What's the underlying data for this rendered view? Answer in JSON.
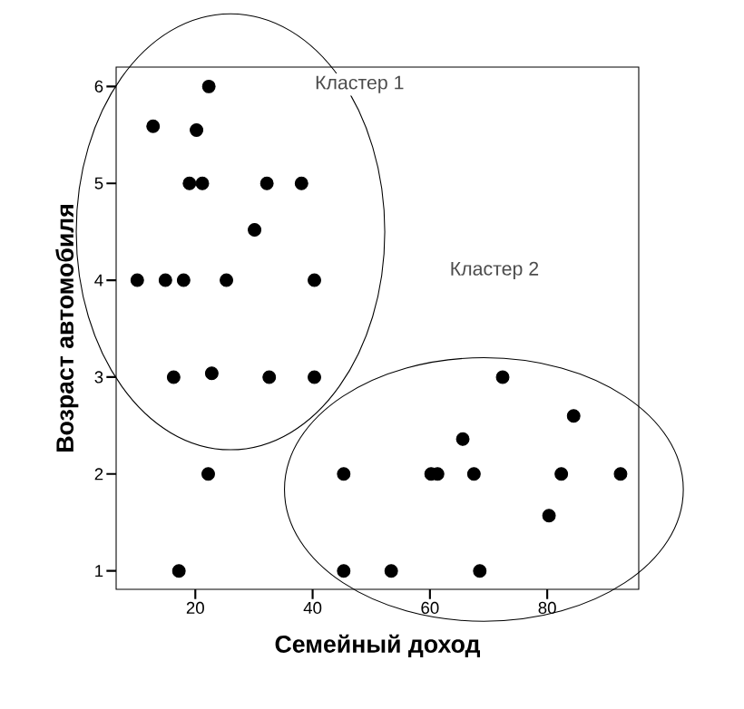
{
  "chart_data": {
    "type": "scatter",
    "xlabel": "Семейный доход",
    "ylabel": "Возраст автомобиля",
    "x": [
      22.3,
      12.8,
      20.2,
      19.0,
      21.2,
      32.2,
      38.1,
      30.1,
      10.1,
      14.9,
      18.0,
      25.3,
      40.3,
      16.3,
      22.8,
      32.6,
      40.3,
      72.4,
      84.5,
      65.6,
      22.2,
      45.3,
      60.2,
      61.3,
      67.5,
      82.4,
      92.5,
      80.3,
      17.2,
      45.3,
      53.4,
      68.5
    ],
    "values": [
      6,
      5.59,
      5.55,
      5,
      5,
      5,
      5,
      4.52,
      4,
      4,
      4,
      4,
      4,
      3,
      3.04,
      3,
      3,
      3,
      2.6,
      2.36,
      2,
      2,
      2,
      2,
      2,
      2,
      2,
      1.57,
      1,
      1,
      1,
      1
    ],
    "color": "#000000",
    "marker": "circle",
    "grid": false,
    "xlim": [
      6.5,
      95.6
    ],
    "ylim": [
      0.81,
      6.2
    ],
    "xticks": [
      20,
      40,
      60,
      80
    ],
    "yticks": [
      1,
      2,
      3,
      4,
      5,
      6
    ],
    "annotations": [
      "Кластер  1",
      "Кластер  2"
    ]
  }
}
